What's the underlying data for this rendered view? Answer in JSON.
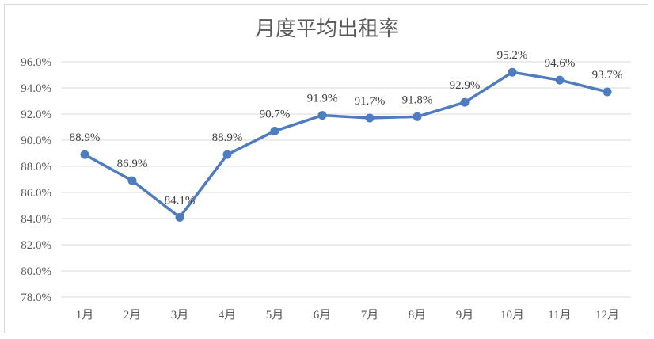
{
  "chart_data": {
    "type": "line",
    "title": "月度平均出租率",
    "xlabel": "",
    "ylabel": "",
    "categories": [
      "1月",
      "2月",
      "3月",
      "4月",
      "5月",
      "6月",
      "7月",
      "8月",
      "9月",
      "10月",
      "11月",
      "12月"
    ],
    "series": [
      {
        "values": [
          88.9,
          86.9,
          84.1,
          88.9,
          90.7,
          91.9,
          91.7,
          91.8,
          92.9,
          95.2,
          94.6,
          93.7
        ],
        "labels": [
          "88.9%",
          "86.9%",
          "84.1%",
          "88.9%",
          "90.7%",
          "91.9%",
          "91.7%",
          "91.8%",
          "92.9%",
          "95.2%",
          "94.6%",
          "93.7%"
        ],
        "color": "#4f7bbf"
      }
    ],
    "ylim": [
      78,
      96
    ],
    "yticks": [
      "78.0%",
      "80.0%",
      "82.0%",
      "84.0%",
      "86.0%",
      "88.0%",
      "90.0%",
      "92.0%",
      "94.0%",
      "96.0%"
    ],
    "grid": true,
    "legend": "none"
  }
}
